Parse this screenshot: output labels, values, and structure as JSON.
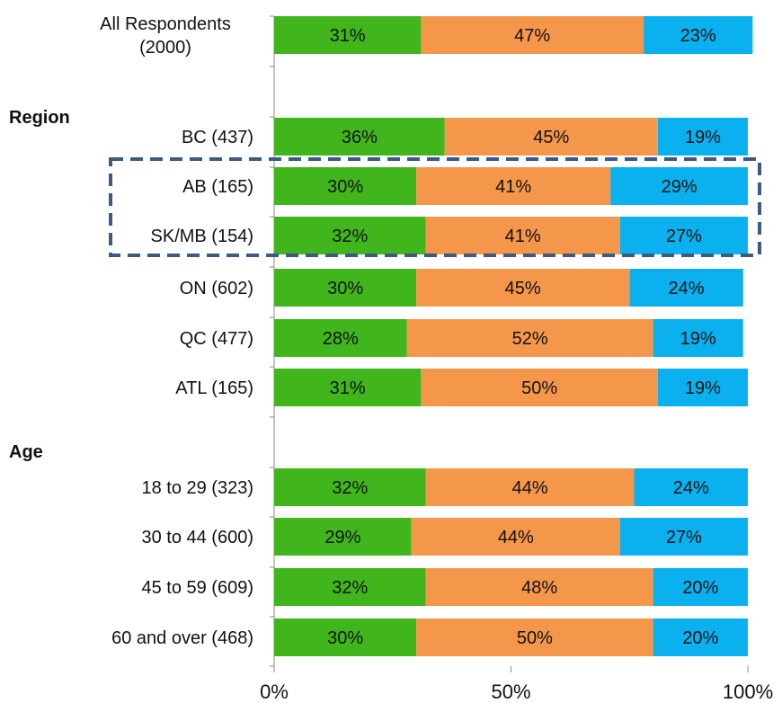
{
  "chart_data": {
    "type": "bar",
    "orientation": "horizontal",
    "stacked": true,
    "sections": [
      {
        "label": "",
        "rows": [
          0
        ]
      },
      {
        "label": "Region",
        "rows": [
          1,
          2,
          3,
          4,
          5,
          6
        ]
      },
      {
        "label": "Age",
        "rows": [
          7,
          8,
          9,
          10
        ]
      }
    ],
    "categories": [
      "All Respondents\n(2000)",
      "BC (437)",
      "AB (165)",
      "SK/MB (154)",
      "ON (602)",
      "QC (477)",
      "ATL (165)",
      "18 to 29 (323)",
      "30 to 44 (600)",
      "45 to 59 (609)",
      "60 and over (468)"
    ],
    "series": [
      {
        "color": "#41b51c",
        "values": [
          31,
          36,
          30,
          32,
          30,
          28,
          31,
          32,
          29,
          32,
          30
        ],
        "labels": [
          "31%",
          "36%",
          "30%",
          "32%",
          "30%",
          "28%",
          "31%",
          "32%",
          "29%",
          "32%",
          "30%"
        ]
      },
      {
        "color": "#f5974b",
        "values": [
          47,
          45,
          41,
          41,
          45,
          52,
          50,
          44,
          44,
          48,
          50
        ],
        "labels": [
          "47%",
          "45%",
          "41%",
          "41%",
          "45%",
          "52%",
          "50%",
          "44%",
          "44%",
          "48%",
          "50%"
        ]
      },
      {
        "color": "#0ab1ee",
        "values": [
          23,
          19,
          29,
          27,
          24,
          19,
          19,
          24,
          27,
          20,
          20
        ],
        "labels": [
          "23%",
          "19%",
          "29%",
          "27%",
          "24%",
          "19%",
          "19%",
          "24%",
          "27%",
          "20%",
          "20%"
        ]
      }
    ],
    "x_ticks": [
      "0%",
      "50%",
      "100%"
    ],
    "xlim": [
      0,
      100
    ],
    "highlight_rows": [
      2,
      3
    ],
    "highlight_color": "#3d5a80",
    "grid": false
  }
}
